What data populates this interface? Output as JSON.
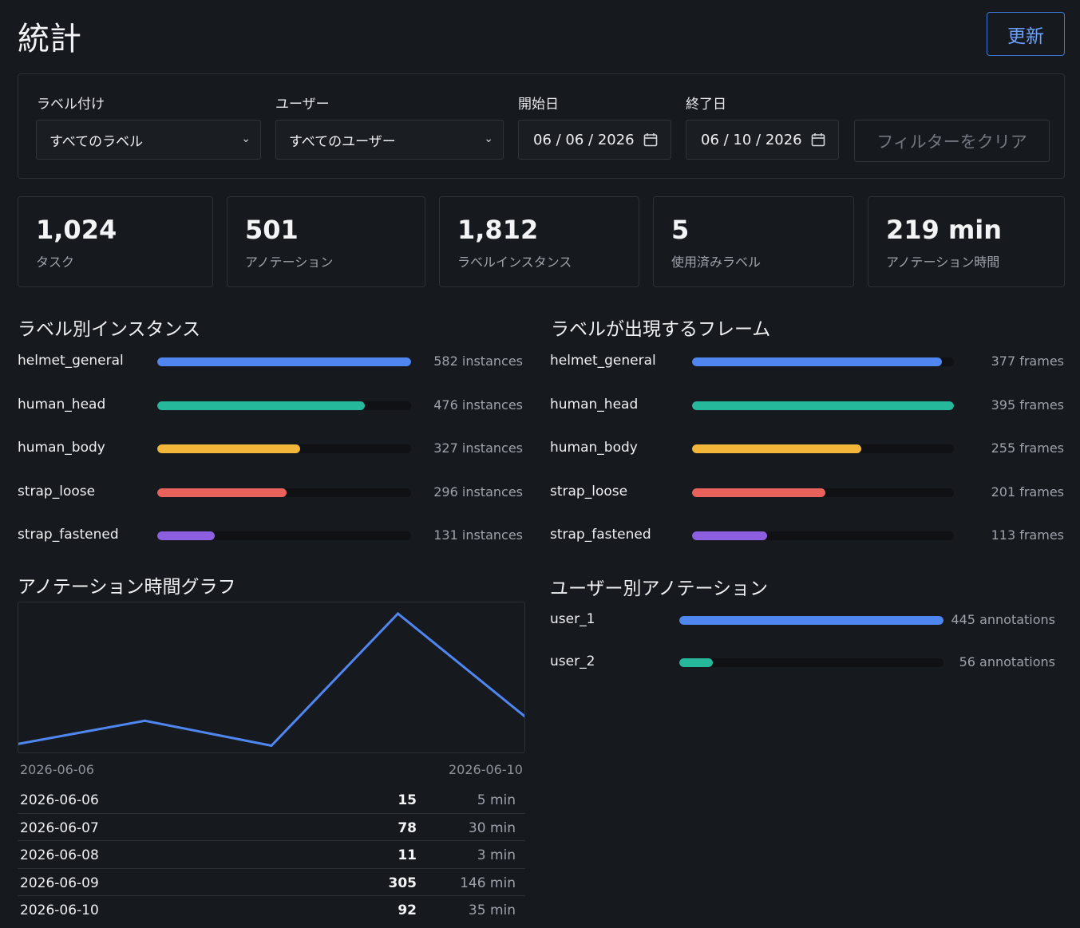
{
  "header": {
    "title": "統計",
    "refresh_label": "更新"
  },
  "filters": {
    "label_title": "ラベル付け",
    "label_value": "すべてのラベル",
    "user_title": "ユーザー",
    "user_value": "すべてのユーザー",
    "start_title": "開始日",
    "start_value": "06 / 06 / 2026",
    "end_title": "終了日",
    "end_value": "06 / 10 / 2026",
    "clear_label": "フィルターをクリア"
  },
  "stats": [
    {
      "value": "1,024",
      "label": "タスク"
    },
    {
      "value": "501",
      "label": "アノテーション"
    },
    {
      "value": "1,812",
      "label": "ラベルインスタンス"
    },
    {
      "value": "5",
      "label": "使用済みラベル"
    },
    {
      "value": "219 min",
      "label": "アノテーション時間"
    }
  ],
  "instances": {
    "title": "ラベル別インスタンス",
    "max": 582,
    "items": [
      {
        "name": "helmet_general",
        "value": 582,
        "text": "582 instances",
        "color": "#4f86f0"
      },
      {
        "name": "human_head",
        "value": 476,
        "text": "476 instances",
        "color": "#26b89a"
      },
      {
        "name": "human_body",
        "value": 327,
        "text": "327 instances",
        "color": "#f2b63a"
      },
      {
        "name": "strap_loose",
        "value": 296,
        "text": "296 instances",
        "color": "#e8615a"
      },
      {
        "name": "strap_fastened",
        "value": 131,
        "text": "131 instances",
        "color": "#8d5fe0"
      }
    ]
  },
  "frames": {
    "title": "ラベルが出現するフレーム",
    "max": 395,
    "items": [
      {
        "name": "helmet_general",
        "value": 377,
        "text": "377 frames",
        "color": "#4f86f0"
      },
      {
        "name": "human_head",
        "value": 395,
        "text": "395 frames",
        "color": "#26b89a"
      },
      {
        "name": "human_body",
        "value": 255,
        "text": "255 frames",
        "color": "#f2b63a"
      },
      {
        "name": "strap_loose",
        "value": 201,
        "text": "201 frames",
        "color": "#e8615a"
      },
      {
        "name": "strap_fastened",
        "value": 113,
        "text": "113 frames",
        "color": "#8d5fe0"
      }
    ]
  },
  "time_graph": {
    "title": "アノテーション時間グラフ",
    "x_start": "2026-06-06",
    "x_end": "2026-06-10",
    "line_color": "#4f86f0"
  },
  "chart_data": {
    "type": "line",
    "x": [
      "2026-06-06",
      "2026-06-07",
      "2026-06-08",
      "2026-06-09",
      "2026-06-10"
    ],
    "series": [
      {
        "values": [
          5,
          30,
          3,
          146,
          35
        ]
      }
    ],
    "grid": false
  },
  "time_table": [
    {
      "date": "2026-06-06",
      "count": "15",
      "minutes": "5 min"
    },
    {
      "date": "2026-06-07",
      "count": "78",
      "minutes": "30 min"
    },
    {
      "date": "2026-06-08",
      "count": "11",
      "minutes": "3 min"
    },
    {
      "date": "2026-06-09",
      "count": "305",
      "minutes": "146 min"
    },
    {
      "date": "2026-06-10",
      "count": "92",
      "minutes": "35 min"
    }
  ],
  "users": {
    "title": "ユーザー別アノテーション",
    "max": 445,
    "items": [
      {
        "name": "user_1",
        "value": 445,
        "text": "445 annotations",
        "color": "#4f86f0"
      },
      {
        "name": "user_2",
        "value": 56,
        "text": "56 annotations",
        "color": "#26b89a"
      }
    ]
  }
}
